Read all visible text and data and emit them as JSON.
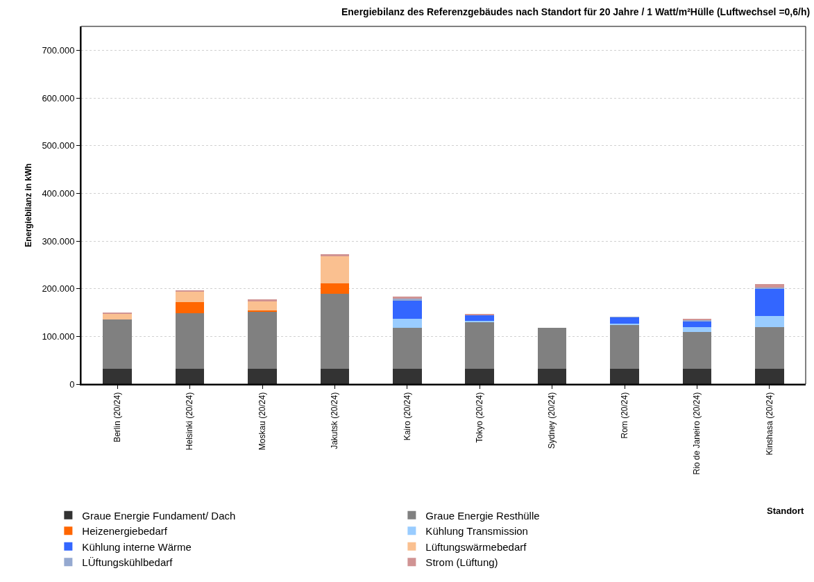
{
  "chart_data": {
    "type": "bar",
    "stacked": true,
    "title": "Energiebilanz des Referenzgebäudes nach Standort für 20 Jahre / 1 Watt/m²Hülle (Luftwechsel =0,6/h)",
    "xlabel": "Standort",
    "ylabel": "Energiebilanz in kWh",
    "categories": [
      "Berlin (20/24)",
      "Helsinki (20/24)",
      "Moskau (20/24)",
      "Jakutsk (20/24)",
      "Kairo (20/24)",
      "Tokyo (20/24)",
      "Sydney (20/24)",
      "Rom (20/24)",
      "Rio de Janeiro (20/24)",
      "Kinshasa (20/24)"
    ],
    "series": [
      {
        "name": "Graue Energie Fundament/ Dach",
        "color": "#333333",
        "values": [
          32000,
          32000,
          32000,
          32000,
          32000,
          32000,
          32000,
          32000,
          32000,
          32000
        ]
      },
      {
        "name": "Graue Energie Resthülle",
        "color": "#808080",
        "values": [
          104000,
          116000,
          119000,
          157000,
          86000,
          97000,
          86000,
          93000,
          77000,
          87000
        ]
      },
      {
        "name": "Heizenergiebedarf",
        "color": "#ff6600",
        "values": [
          null,
          24000,
          4000,
          22000,
          null,
          null,
          null,
          null,
          null,
          null
        ]
      },
      {
        "name": "Kühlung Transmission",
        "color": "#99ccff",
        "values": [
          null,
          null,
          null,
          null,
          19000,
          4000,
          null,
          2000,
          10000,
          23000
        ]
      },
      {
        "name": "Kühlung interne Wärme",
        "color": "#3366ff",
        "values": [
          null,
          null,
          null,
          null,
          38000,
          12000,
          null,
          13000,
          13000,
          58000
        ]
      },
      {
        "name": "Lüftungswärmebedarf",
        "color": "#fac090",
        "values": [
          11000,
          21000,
          19000,
          57000,
          null,
          null,
          null,
          null,
          null,
          null
        ]
      },
      {
        "name": "LÜftungskühlbedarf",
        "color": "#95a9d0",
        "values": [
          null,
          null,
          null,
          null,
          4000,
          null,
          null,
          1000,
          2000,
          3000
        ]
      },
      {
        "name": "Strom (Lüftung)",
        "color": "#d09393",
        "values": [
          3000,
          3000,
          3000,
          4000,
          4000,
          2000,
          null,
          null,
          2000,
          6000
        ]
      }
    ],
    "ylim": [
      0,
      750000
    ],
    "yticks": [
      {
        "value": 0,
        "label": "0"
      },
      {
        "value": 100000,
        "label": "100.000"
      },
      {
        "value": 200000,
        "label": "200.000"
      },
      {
        "value": 300000,
        "label": "300.000"
      },
      {
        "value": 400000,
        "label": "400.000"
      },
      {
        "value": 500000,
        "label": "500.000"
      },
      {
        "value": 600000,
        "label": "600.000"
      },
      {
        "value": 700000,
        "label": "700.000"
      }
    ],
    "grid": "y",
    "legend": "bottom"
  }
}
